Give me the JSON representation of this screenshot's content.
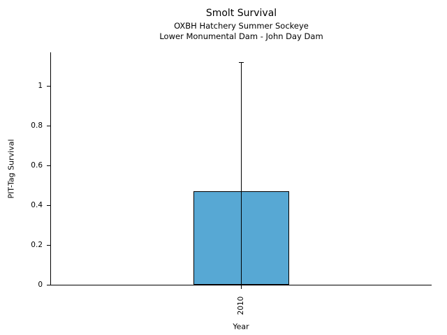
{
  "chart_data": {
    "type": "bar",
    "title": "Smolt Survival",
    "subtitle_lines": [
      "OXBH Hatchery Summer Sockeye",
      "Lower Monumental Dam - John Day Dam"
    ],
    "xlabel": "Year",
    "ylabel": "PIT-Tag Survival",
    "categories": [
      "2010"
    ],
    "values": [
      0.47
    ],
    "error_upper": [
      1.12
    ],
    "error_lower_clipped_at_axis": true,
    "ylim": [
      0,
      1.17
    ],
    "yticks": [
      0,
      0.2,
      0.4,
      0.6,
      0.8,
      1
    ],
    "grid": false,
    "legend": false,
    "bar_color": "#57a8d4",
    "bar_edge_color": "#000000",
    "axis_color": "#000000",
    "text_color": "#000000",
    "background_color": "#ffffff"
  }
}
